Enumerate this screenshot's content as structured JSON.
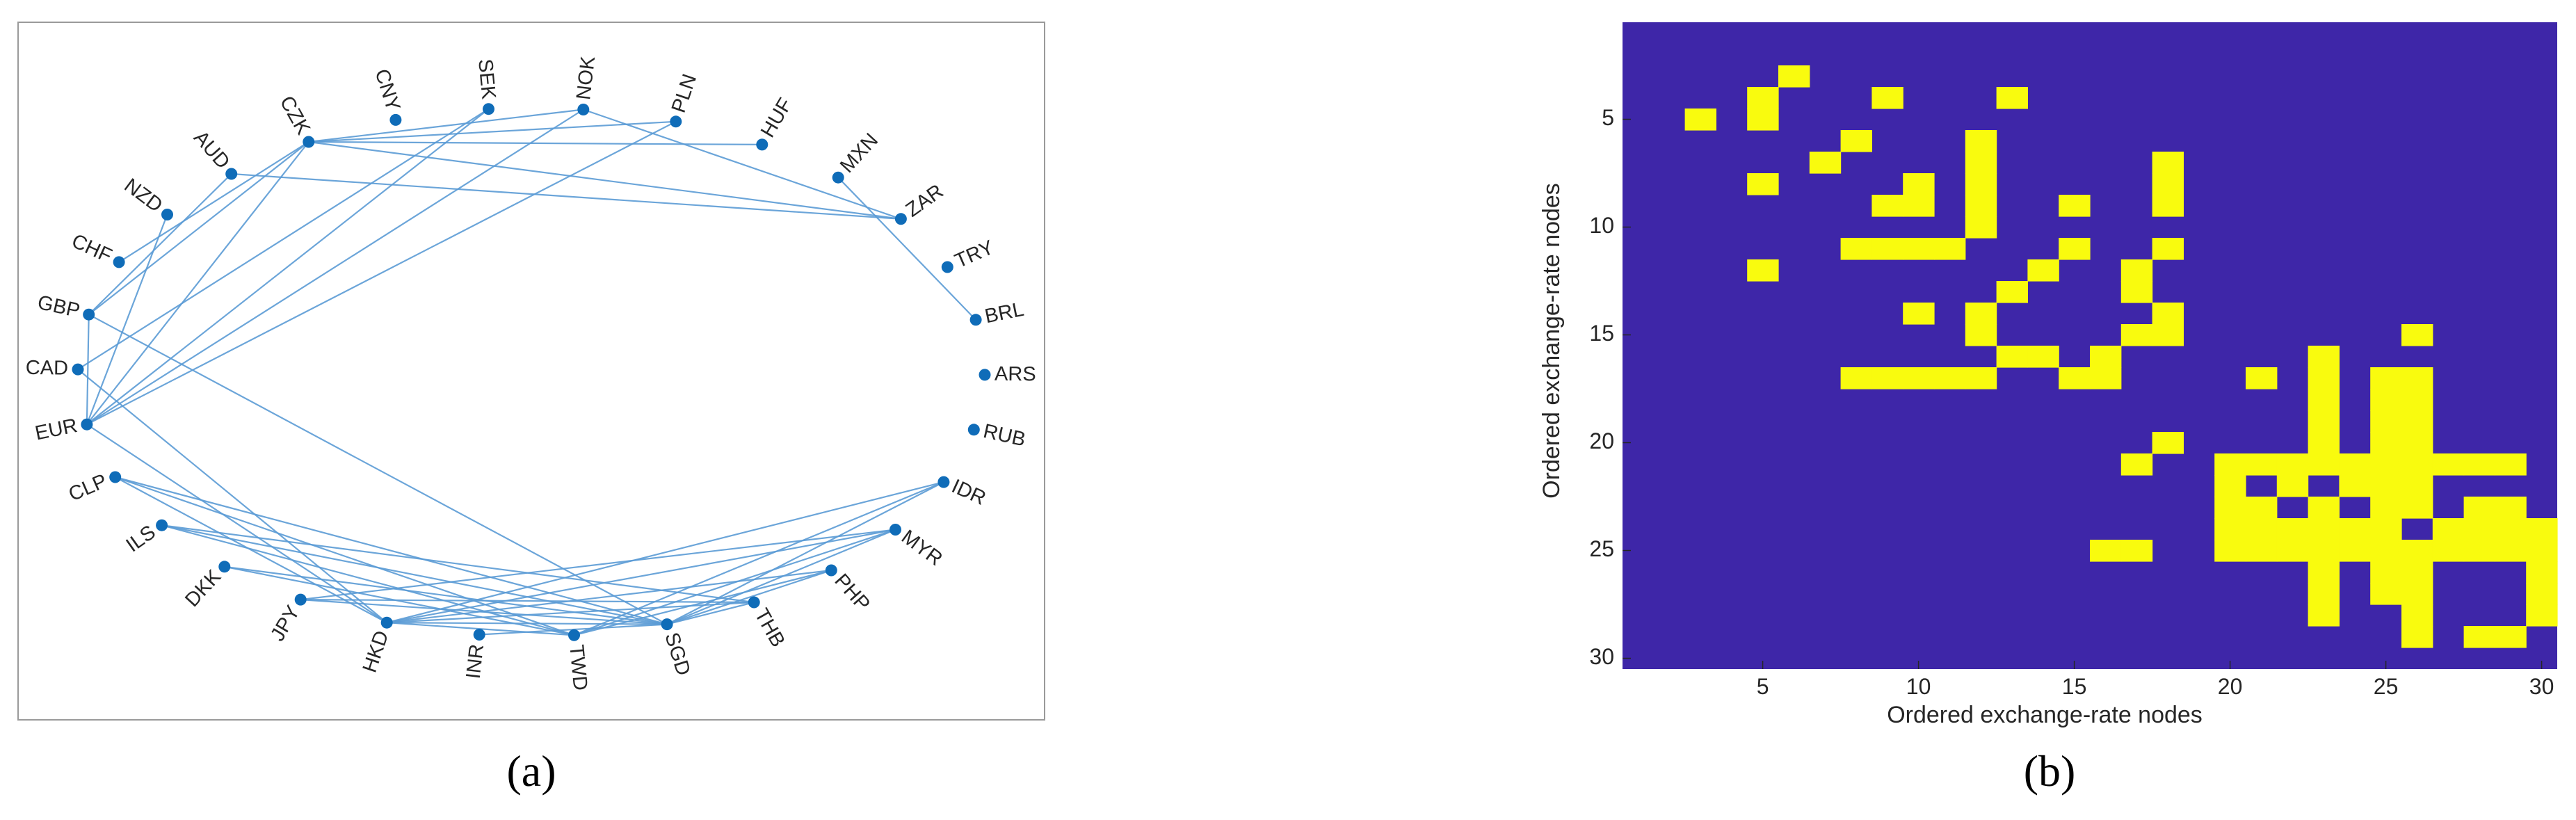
{
  "chart_data": [
    {
      "type": "network",
      "panel_label": "(a)",
      "layout": "circle",
      "colors": {
        "node": "#0f6cb8",
        "edge": "#5b9bd5",
        "frame": "#9a9a9a"
      },
      "nodes": [
        "NOK",
        "PLN",
        "HUF",
        "MXN",
        "ZAR",
        "TRY",
        "BRL",
        "ARS",
        "RUB",
        "IDR",
        "MYR",
        "PHP",
        "THB",
        "SGD",
        "TWD",
        "INR",
        "HKD",
        "JPY",
        "DKK",
        "ILS",
        "CLP",
        "EUR",
        "CAD",
        "GBP",
        "CHF",
        "NZD",
        "AUD",
        "CZK",
        "CNY",
        "SEK"
      ],
      "edges": [
        [
          "NOK",
          "ZAR"
        ],
        [
          "NOK",
          "CZK"
        ],
        [
          "NOK",
          "EUR"
        ],
        [
          "SEK",
          "EUR"
        ],
        [
          "PLN",
          "CZK"
        ],
        [
          "PLN",
          "EUR"
        ],
        [
          "HUF",
          "CZK"
        ],
        [
          "MXN",
          "BRL"
        ],
        [
          "ZAR",
          "AUD"
        ],
        [
          "ZAR",
          "CZK"
        ],
        [
          "CZK",
          "CHF"
        ],
        [
          "CZK",
          "EUR"
        ],
        [
          "CZK",
          "GBP"
        ],
        [
          "SEK",
          "CAD"
        ],
        [
          "NZD",
          "EUR"
        ],
        [
          "AUD",
          "GBP"
        ],
        [
          "GBP",
          "EUR"
        ],
        [
          "GBP",
          "SGD"
        ],
        [
          "CAD",
          "HKD"
        ],
        [
          "EUR",
          "HKD"
        ],
        [
          "CLP",
          "TWD"
        ],
        [
          "CLP",
          "SGD"
        ],
        [
          "CLP",
          "HKD"
        ],
        [
          "ILS",
          "SGD"
        ],
        [
          "ILS",
          "THB"
        ],
        [
          "ILS",
          "TWD"
        ],
        [
          "DKK",
          "SGD"
        ],
        [
          "DKK",
          "TWD"
        ],
        [
          "JPY",
          "SGD"
        ],
        [
          "JPY",
          "THB"
        ],
        [
          "JPY",
          "MYR"
        ],
        [
          "HKD",
          "IDR"
        ],
        [
          "HKD",
          "MYR"
        ],
        [
          "HKD",
          "PHP"
        ],
        [
          "HKD",
          "THB"
        ],
        [
          "HKD",
          "SGD"
        ],
        [
          "HKD",
          "TWD"
        ],
        [
          "INR",
          "SGD"
        ],
        [
          "TWD",
          "IDR"
        ],
        [
          "TWD",
          "MYR"
        ],
        [
          "TWD",
          "PHP"
        ],
        [
          "SGD",
          "IDR"
        ],
        [
          "SGD",
          "MYR"
        ],
        [
          "SGD",
          "PHP"
        ],
        [
          "SGD",
          "THB"
        ]
      ]
    },
    {
      "type": "heatmap",
      "panel_label": "(b)",
      "xlabel": "Ordered exchange-rate nodes",
      "ylabel": "Ordered exchange-rate nodes",
      "xticks": [
        5,
        10,
        15,
        20,
        25,
        30
      ],
      "yticks": [
        5,
        10,
        15,
        20,
        25,
        30
      ],
      "xlim": [
        0.5,
        30.5
      ],
      "ylim": [
        0.5,
        30.5
      ],
      "y_reversed": true,
      "colors": {
        "zero": "#3e26a8",
        "one": "#f9fb0e"
      },
      "cells": [
        [
          3,
          6
        ],
        [
          4,
          5
        ],
        [
          4,
          9
        ],
        [
          4,
          13
        ],
        [
          5,
          3
        ],
        [
          5,
          5
        ],
        [
          6,
          8
        ],
        [
          6,
          12
        ],
        [
          7,
          7
        ],
        [
          7,
          12
        ],
        [
          7,
          18
        ],
        [
          8,
          5
        ],
        [
          8,
          10
        ],
        [
          8,
          12
        ],
        [
          8,
          18
        ],
        [
          9,
          9
        ],
        [
          9,
          10
        ],
        [
          9,
          12
        ],
        [
          9,
          15
        ],
        [
          9,
          18
        ],
        [
          10,
          12
        ],
        [
          11,
          8
        ],
        [
          11,
          9
        ],
        [
          11,
          10
        ],
        [
          11,
          11
        ],
        [
          11,
          15
        ],
        [
          11,
          18
        ],
        [
          12,
          5
        ],
        [
          12,
          14
        ],
        [
          12,
          17
        ],
        [
          13,
          13
        ],
        [
          13,
          17
        ],
        [
          14,
          10
        ],
        [
          14,
          12
        ],
        [
          14,
          18
        ],
        [
          15,
          12
        ],
        [
          15,
          17
        ],
        [
          15,
          18
        ],
        [
          15,
          26
        ],
        [
          16,
          13
        ],
        [
          16,
          14
        ],
        [
          16,
          16
        ],
        [
          16,
          23
        ],
        [
          17,
          8
        ],
        [
          17,
          9
        ],
        [
          17,
          10
        ],
        [
          17,
          11
        ],
        [
          17,
          12
        ],
        [
          17,
          15
        ],
        [
          17,
          16
        ],
        [
          17,
          21
        ],
        [
          17,
          23
        ],
        [
          17,
          25
        ],
        [
          17,
          26
        ],
        [
          18,
          23
        ],
        [
          18,
          25
        ],
        [
          18,
          26
        ],
        [
          19,
          23
        ],
        [
          19,
          25
        ],
        [
          19,
          26
        ],
        [
          20,
          18
        ],
        [
          20,
          23
        ],
        [
          20,
          25
        ],
        [
          20,
          26
        ],
        [
          21,
          17
        ],
        [
          21,
          20
        ],
        [
          21,
          21
        ],
        [
          21,
          22
        ],
        [
          21,
          23
        ],
        [
          21,
          24
        ],
        [
          21,
          25
        ],
        [
          21,
          26
        ],
        [
          21,
          27
        ],
        [
          21,
          28
        ],
        [
          21,
          29
        ],
        [
          22,
          20
        ],
        [
          22,
          22
        ],
        [
          22,
          24
        ],
        [
          22,
          25
        ],
        [
          22,
          26
        ],
        [
          23,
          20
        ],
        [
          23,
          21
        ],
        [
          23,
          23
        ],
        [
          23,
          25
        ],
        [
          23,
          26
        ],
        [
          23,
          28
        ],
        [
          23,
          29
        ],
        [
          24,
          20
        ],
        [
          24,
          21
        ],
        [
          24,
          22
        ],
        [
          24,
          23
        ],
        [
          24,
          24
        ],
        [
          24,
          25
        ],
        [
          24,
          27
        ],
        [
          24,
          28
        ],
        [
          24,
          29
        ],
        [
          24,
          30
        ],
        [
          25,
          16
        ],
        [
          25,
          17
        ],
        [
          25,
          20
        ],
        [
          25,
          21
        ],
        [
          25,
          22
        ],
        [
          25,
          23
        ],
        [
          25,
          24
        ],
        [
          25,
          25
        ],
        [
          25,
          26
        ],
        [
          25,
          27
        ],
        [
          25,
          28
        ],
        [
          25,
          29
        ],
        [
          25,
          30
        ],
        [
          26,
          23
        ],
        [
          26,
          25
        ],
        [
          26,
          26
        ],
        [
          26,
          30
        ],
        [
          27,
          23
        ],
        [
          27,
          25
        ],
        [
          27,
          26
        ],
        [
          27,
          30
        ],
        [
          28,
          23
        ],
        [
          28,
          26
        ],
        [
          28,
          30
        ],
        [
          29,
          26
        ],
        [
          29,
          28
        ],
        [
          29,
          29
        ]
      ]
    }
  ]
}
